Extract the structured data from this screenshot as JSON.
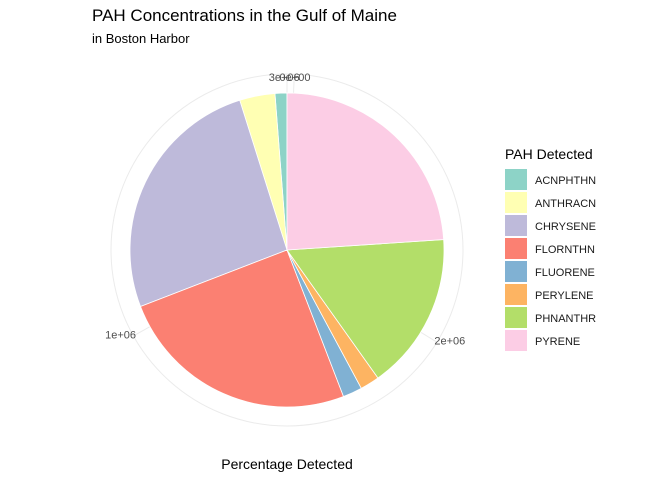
{
  "chart_data": {
    "type": "pie",
    "title": "PAH Concentrations in the Gulf of Maine",
    "subtitle": "in Boston Harbor",
    "xlabel": "Percentage Detected",
    "ylabel": "",
    "radial_ticks": [
      {
        "label": "0e+00",
        "value": 0
      },
      {
        "label": "1e+06",
        "value": 1000000
      },
      {
        "label": "2e+06",
        "value": 2000000
      },
      {
        "label": "3e+06",
        "value": 3000000
      }
    ],
    "total": 3020000,
    "start_offset": 0,
    "direction": "counterclockwise",
    "legend": {
      "title": "PAH Detected",
      "position": "right"
    },
    "categories": [
      "ACNPHTHN",
      "ANTHRACN",
      "CHRYSENE",
      "FLORNTHN",
      "FLUORENE",
      "PERYLENE",
      "PHNANTHR",
      "PYRENE"
    ],
    "values": [
      37000,
      110000,
      785000,
      755000,
      60000,
      60000,
      490000,
      723000
    ],
    "colors": [
      "#8DD3C7",
      "#FFFFB3",
      "#BEBADA",
      "#FB8072",
      "#80B1D3",
      "#FDB462",
      "#B3DE69",
      "#FCCDE5"
    ],
    "grid": true
  }
}
